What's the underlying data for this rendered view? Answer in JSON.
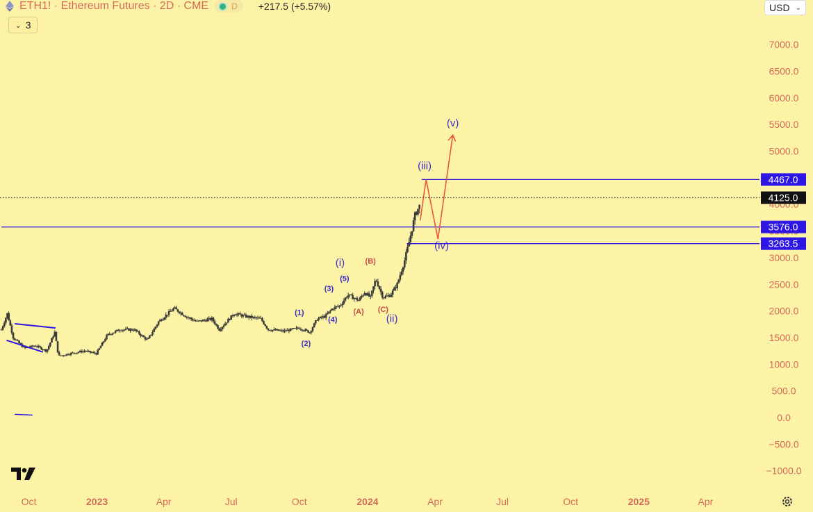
{
  "header": {
    "title": "ETH1! · Ethereum Futures · 2D · CME",
    "interval_badge": "D",
    "change": "+217.5 (+5.57%)"
  },
  "collapse_count": "3",
  "currency": "USD",
  "colors": {
    "background": "#fdf3a6",
    "candle": "#3a3a3a",
    "wave_purple": "#3b2ccc",
    "wave_red": "#c44a4a",
    "projection": "#e8553f",
    "level_box": "#2e17e6",
    "price_box": "#111111",
    "axis_text": "#d46a56"
  },
  "chart_data": {
    "type": "candlestick",
    "x_range": [
      "2022-08-25",
      "2025-06-10"
    ],
    "x_ticks": [
      {
        "date": "2022-10-01",
        "label": "Oct",
        "bold": false
      },
      {
        "date": "2023-01-01",
        "label": "2023",
        "bold": true
      },
      {
        "date": "2023-04-01",
        "label": "Apr",
        "bold": false
      },
      {
        "date": "2023-07-01",
        "label": "Jul",
        "bold": false
      },
      {
        "date": "2023-10-01",
        "label": "Oct",
        "bold": false
      },
      {
        "date": "2024-01-01",
        "label": "2024",
        "bold": true
      },
      {
        "date": "2024-04-01",
        "label": "Apr",
        "bold": false
      },
      {
        "date": "2024-07-01",
        "label": "Jul",
        "bold": false
      },
      {
        "date": "2024-10-01",
        "label": "Oct",
        "bold": false
      },
      {
        "date": "2025-01-01",
        "label": "2025",
        "bold": true
      },
      {
        "date": "2025-04-01",
        "label": "Apr",
        "bold": false
      }
    ],
    "y_ticks": [
      7000,
      6500,
      6000,
      5500,
      5000,
      4500,
      4000,
      3500,
      3000,
      2500,
      2000,
      1500,
      1000,
      500,
      0,
      -500,
      -1000
    ],
    "y_tick_labels": [
      "7000.0",
      "6500.0",
      "6000.0",
      "5500.0",
      "5000.0",
      "4500.0",
      "4000.0",
      "3500.0",
      "3000.0",
      "2500.0",
      "2000.0",
      "1500.0",
      "1000.0",
      "500.0",
      "0.0",
      "−500.0",
      "−1000.0"
    ],
    "price_path": [
      [
        "2022-08-25",
        1650
      ],
      [
        "2022-09-02",
        1950
      ],
      [
        "2022-09-10",
        1500
      ],
      [
        "2022-09-25",
        1300
      ],
      [
        "2022-10-10",
        1350
      ],
      [
        "2022-10-25",
        1250
      ],
      [
        "2022-11-05",
        1600
      ],
      [
        "2022-11-10",
        1150
      ],
      [
        "2022-11-25",
        1200
      ],
      [
        "2022-12-15",
        1250
      ],
      [
        "2022-12-31",
        1200
      ],
      [
        "2023-01-15",
        1550
      ],
      [
        "2023-02-01",
        1650
      ],
      [
        "2023-02-20",
        1650
      ],
      [
        "2023-03-10",
        1450
      ],
      [
        "2023-03-25",
        1800
      ],
      [
        "2023-04-15",
        2050
      ],
      [
        "2023-05-01",
        1900
      ],
      [
        "2023-05-15",
        1800
      ],
      [
        "2023-06-05",
        1850
      ],
      [
        "2023-06-15",
        1650
      ],
      [
        "2023-07-05",
        1950
      ],
      [
        "2023-07-20",
        1900
      ],
      [
        "2023-08-10",
        1850
      ],
      [
        "2023-08-20",
        1650
      ],
      [
        "2023-09-10",
        1620
      ],
      [
        "2023-10-01",
        1680
      ],
      [
        "2023-10-15",
        1600
      ],
      [
        "2023-10-25",
        1850
      ],
      [
        "2023-11-05",
        1900
      ],
      [
        "2023-11-15",
        2050
      ],
      [
        "2023-11-25",
        2100
      ],
      [
        "2023-12-05",
        2300
      ],
      [
        "2023-12-20",
        2200
      ],
      [
        "2023-12-28",
        2350
      ],
      [
        "2024-01-05",
        2250
      ],
      [
        "2024-01-12",
        2600
      ],
      [
        "2024-01-22",
        2250
      ],
      [
        "2024-02-01",
        2300
      ],
      [
        "2024-02-10",
        2500
      ],
      [
        "2024-02-20",
        2950
      ],
      [
        "2024-02-27",
        3350
      ],
      [
        "2024-03-05",
        3800
      ],
      [
        "2024-03-12",
        4000
      ]
    ],
    "levels": [
      {
        "price": 4467,
        "label": "4467.0",
        "line_start": "2024-03-14"
      },
      {
        "price": 3576,
        "label": "3576.0",
        "line_start": "2022-08-25"
      },
      {
        "price": 3263.5,
        "label": "3263.5",
        "line_start": "2024-02-23"
      }
    ],
    "last_price": {
      "price": 4125,
      "label": "4125.0"
    },
    "projection_path": [
      [
        "2024-03-12",
        3700
      ],
      [
        "2024-03-20",
        4467
      ],
      [
        "2024-04-05",
        3350
      ],
      [
        "2024-04-25",
        5300
      ]
    ],
    "wave_labels": [
      {
        "text": "(1)",
        "date": "2023-10-01",
        "price": 1920,
        "color": "purple",
        "size": "small"
      },
      {
        "text": "(2)",
        "date": "2023-10-10",
        "price": 1340,
        "color": "purple",
        "size": "small"
      },
      {
        "text": "(3)",
        "date": "2023-11-10",
        "price": 2370,
        "color": "purple",
        "size": "small"
      },
      {
        "text": "(4)",
        "date": "2023-11-15",
        "price": 1790,
        "color": "purple",
        "size": "small"
      },
      {
        "text": "(5)",
        "date": "2023-12-01",
        "price": 2560,
        "color": "purple",
        "size": "small"
      },
      {
        "text": "(i)",
        "date": "2023-11-25",
        "price": 2840,
        "color": "purple",
        "size": "large"
      },
      {
        "text": "(A)",
        "date": "2023-12-20",
        "price": 1940,
        "color": "red",
        "size": "small"
      },
      {
        "text": "(B)",
        "date": "2024-01-05",
        "price": 2890,
        "color": "red",
        "size": "small"
      },
      {
        "text": "(C)",
        "date": "2024-01-22",
        "price": 1980,
        "color": "red",
        "size": "small"
      },
      {
        "text": "(ii)",
        "date": "2024-02-03",
        "price": 1790,
        "color": "purple",
        "size": "large"
      },
      {
        "text": "(iii)",
        "date": "2024-03-18",
        "price": 4660,
        "color": "purple",
        "size": "large"
      },
      {
        "text": "(iv)",
        "date": "2024-04-10",
        "price": 3160,
        "color": "purple",
        "size": "large"
      },
      {
        "text": "(v)",
        "date": "2024-04-25",
        "price": 5460,
        "color": "purple",
        "size": "large"
      }
    ],
    "wedge_lines": [
      [
        [
          "2022-09-12",
          1760
        ],
        [
          "2022-11-06",
          1680
        ]
      ],
      [
        [
          "2022-09-01",
          1450
        ],
        [
          "2022-10-20",
          1230
        ]
      ]
    ],
    "stray_dash": [
      [
        "2022-09-12",
        60
      ],
      [
        "2022-10-06",
        45
      ]
    ]
  }
}
